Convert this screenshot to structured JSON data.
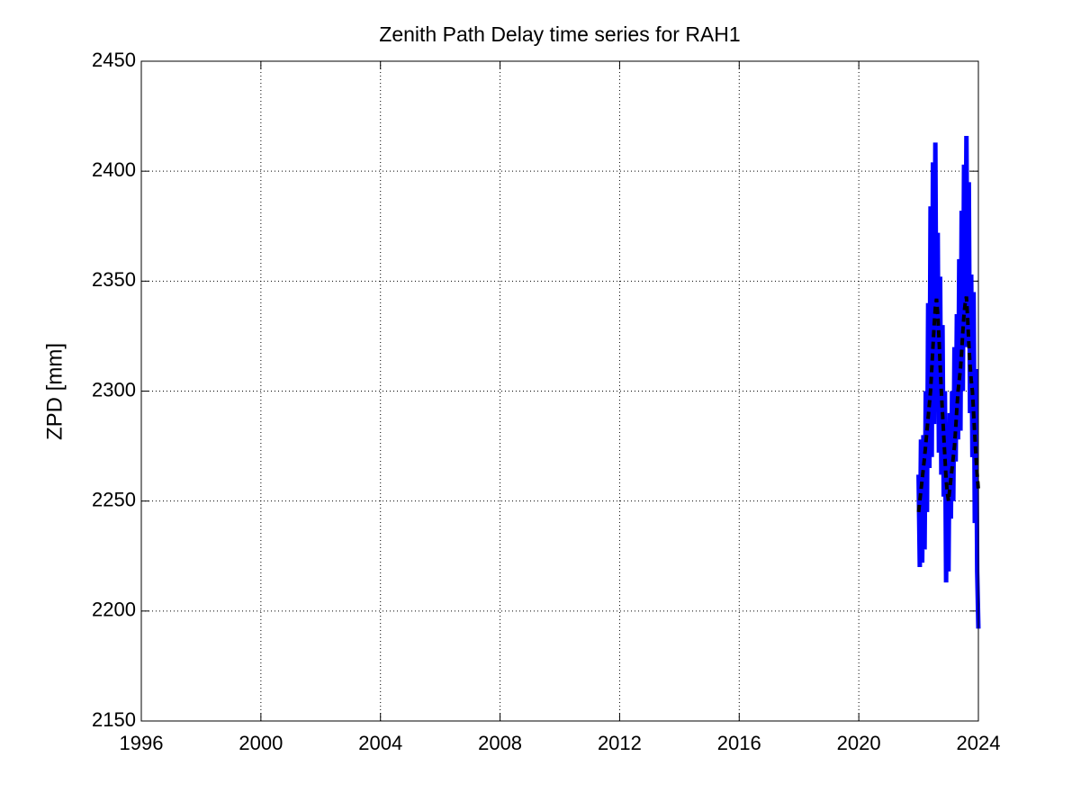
{
  "chart_data": {
    "type": "line",
    "title": "Zenith Path Delay time series for RAH1",
    "y_label": "ZPD [mm]",
    "x": [
      2022.0,
      2022.04,
      2022.08,
      2022.12,
      2022.16,
      2022.2,
      2022.24,
      2022.28,
      2022.32,
      2022.36,
      2022.4,
      2022.44,
      2022.48,
      2022.52,
      2022.56,
      2022.6,
      2022.64,
      2022.68,
      2022.72,
      2022.76,
      2022.8,
      2022.84,
      2022.88,
      2022.92,
      2022.96,
      2023.0,
      2023.04,
      2023.08,
      2023.12,
      2023.16,
      2023.2,
      2023.24,
      2023.28,
      2023.32,
      2023.36,
      2023.4,
      2023.44,
      2023.48,
      2023.52,
      2023.56,
      2023.6,
      2023.64,
      2023.68,
      2023.72,
      2023.76,
      2023.8,
      2023.84,
      2023.88,
      2023.92,
      2023.96,
      2024.0
    ],
    "series": [
      {
        "color": "#0000ff",
        "line_style": "solid",
        "values": [
          2262,
          2220,
          2278,
          2222,
          2280,
          2228,
          2300,
          2245,
          2340,
          2265,
          2384,
          2270,
          2404,
          2285,
          2413,
          2300,
          2372,
          2272,
          2352,
          2262,
          2330,
          2252,
          2300,
          2213,
          2280,
          2218,
          2290,
          2242,
          2300,
          2250,
          2320,
          2268,
          2335,
          2278,
          2360,
          2282,
          2382,
          2300,
          2403,
          2320,
          2416,
          2322,
          2395,
          2290,
          2353,
          2270,
          2345,
          2240,
          2310,
          2218,
          2192
        ]
      },
      {
        "color": "#000000",
        "line_style": "dashed",
        "values": [
          2245,
          2250,
          2255,
          2260,
          2265,
          2270,
          2276,
          2282,
          2288,
          2294,
          2300,
          2310,
          2320,
          2330,
          2338,
          2342,
          2335,
          2325,
          2312,
          2300,
          2290,
          2280,
          2270,
          2260,
          2254,
          2250,
          2255,
          2260,
          2265,
          2270,
          2275,
          2283,
          2292,
          2300,
          2305,
          2310,
          2318,
          2327,
          2335,
          2340,
          2343,
          2333,
          2322,
          2312,
          2305,
          2300,
          2290,
          2280,
          2270,
          2262,
          2255
        ]
      }
    ],
    "xlim": [
      1996,
      2024
    ],
    "xticks": [
      1996,
      2000,
      2004,
      2008,
      2012,
      2016,
      2020,
      2024
    ],
    "ylim": [
      2150,
      2450
    ],
    "yticks": [
      2150,
      2200,
      2250,
      2300,
      2350,
      2400,
      2450
    ],
    "grid": true
  }
}
